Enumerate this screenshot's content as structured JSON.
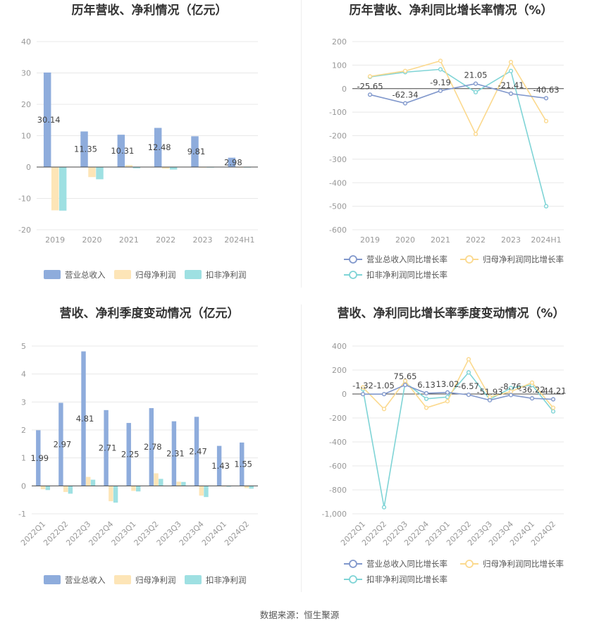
{
  "source": "数据来源：恒生聚源",
  "colors": {
    "revenue": "#8eacdc",
    "parent_net_profit": "#fde5b7",
    "deducted_net_profit": "#9ee0e2",
    "revenue_line": "#8198cc",
    "parent_line": "#fbd98e",
    "deducted_line": "#7fd4d6",
    "grid": "#e8e8e8",
    "zero_line": "#444444"
  },
  "chart_data": [
    {
      "id": "annual-bar",
      "type": "bar",
      "title": "历年营收、净利情况（亿元）",
      "categories": [
        "2019",
        "2020",
        "2021",
        "2022",
        "2023",
        "2024H1"
      ],
      "yticks": [
        40,
        30,
        20,
        10,
        0,
        -10,
        -20
      ],
      "ylim": [
        -20,
        40
      ],
      "series": [
        {
          "name": "营业总收入",
          "values": [
            30.14,
            11.35,
            10.31,
            12.48,
            9.81,
            2.98
          ],
          "labels": [
            "30.14",
            "11.35",
            "10.31",
            "12.48",
            "9.81",
            "2.98"
          ]
        },
        {
          "name": "归母净利润",
          "values": [
            -13.8,
            -3.2,
            0.6,
            -0.5,
            -0.05,
            -0.1
          ]
        },
        {
          "name": "扣非净利润",
          "values": [
            -13.9,
            -3.9,
            -0.4,
            -0.8,
            -0.1,
            -0.1
          ]
        }
      ],
      "legend": "bottom"
    },
    {
      "id": "annual-line",
      "type": "line",
      "title": "历年营收、净利同比增长率情况（%）",
      "categories": [
        "2019",
        "2020",
        "2021",
        "2022",
        "2023",
        "2024H1"
      ],
      "yticks": [
        200,
        100,
        0,
        -100,
        -200,
        -300,
        -400,
        -500,
        -600
      ],
      "ylim": [
        -600,
        200
      ],
      "series": [
        {
          "name": "营业总收入同比增长率",
          "values": [
            -25.65,
            -62.34,
            -9.19,
            21.05,
            -21.41,
            -40.63
          ],
          "labels": [
            "-25.65",
            "-62.34",
            "-9.19",
            "21.05",
            "-21.41",
            "-40.63"
          ]
        },
        {
          "name": "归母净利润同比增长率",
          "values": [
            52,
            75,
            118,
            -193,
            113,
            -138
          ]
        },
        {
          "name": "扣非净利润同比增长率",
          "values": [
            50,
            70,
            82,
            -15,
            75,
            -500
          ]
        }
      ],
      "legend": "bottom"
    },
    {
      "id": "quarterly-bar",
      "type": "bar",
      "title": "营收、净利季度变动情况（亿元）",
      "categories": [
        "2022Q1",
        "2022Q2",
        "2022Q3",
        "2022Q4",
        "2023Q1",
        "2023Q2",
        "2023Q3",
        "2023Q4",
        "2024Q1",
        "2024Q2"
      ],
      "yticks": [
        5,
        4,
        3,
        2,
        1,
        0,
        -1
      ],
      "ylim": [
        -1,
        5
      ],
      "series": [
        {
          "name": "营业总收入",
          "values": [
            1.99,
            2.97,
            4.81,
            2.71,
            2.25,
            2.78,
            2.31,
            2.47,
            1.43,
            1.55
          ],
          "labels": [
            "1.99",
            "2.97",
            "4.81",
            "2.71",
            "2.25",
            "2.78",
            "2.31",
            "2.47",
            "1.43",
            "1.55"
          ]
        },
        {
          "name": "归母净利润",
          "values": [
            -0.12,
            -0.22,
            0.32,
            -0.55,
            -0.18,
            0.45,
            0.15,
            -0.35,
            -0.02,
            -0.08
          ]
        },
        {
          "name": "扣非净利润",
          "values": [
            -0.15,
            -0.28,
            0.22,
            -0.6,
            -0.2,
            0.25,
            0.14,
            -0.4,
            -0.03,
            -0.1
          ]
        }
      ],
      "legend": "bottom"
    },
    {
      "id": "quarterly-line",
      "type": "line",
      "title": "营收、净利同比增长率季度变动情况（%）",
      "categories": [
        "2022Q1",
        "2022Q2",
        "2022Q3",
        "2022Q4",
        "2023Q1",
        "2023Q2",
        "2023Q3",
        "2023Q4",
        "2024Q1",
        "2024Q2"
      ],
      "yticks": [
        400,
        200,
        0,
        -200,
        -400,
        -600,
        -800,
        "-1,000"
      ],
      "ylim": [
        -1000,
        400
      ],
      "series": [
        {
          "name": "营业总收入同比增长率",
          "values": [
            -1.32,
            -1.05,
            75.65,
            6.13,
            13.02,
            -6.57,
            -51.93,
            -8.76,
            -36.22,
            -44.21
          ],
          "labels": [
            "-1.32",
            "-1.05",
            "75.65",
            "6.13",
            "13.02",
            "-6.57",
            "-51.93",
            "-8.76",
            "-36.22",
            "-44.21"
          ]
        },
        {
          "name": "归母净利润同比增长率",
          "values": [
            55,
            -125,
            110,
            -115,
            -60,
            290,
            -25,
            20,
            95,
            -115
          ]
        },
        {
          "name": "扣非净利润同比增长率",
          "values": [
            40,
            -945,
            95,
            -40,
            -25,
            180,
            -45,
            50,
            75,
            -145
          ]
        }
      ],
      "legend": "bottom"
    }
  ]
}
